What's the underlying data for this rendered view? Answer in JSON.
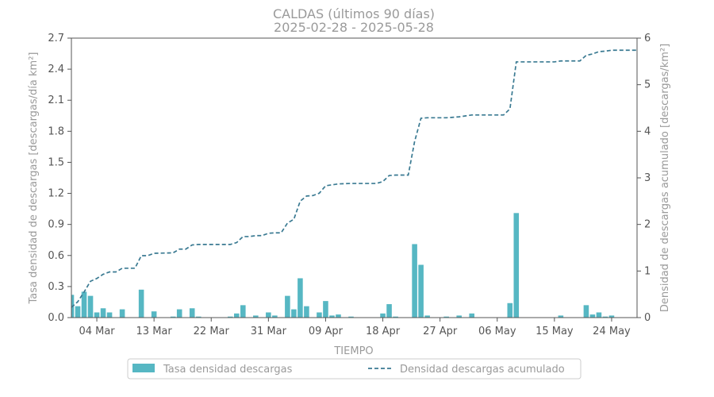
{
  "chart_data": {
    "type": "bar+line",
    "title": "CALDAS (últimos 90 días)",
    "subtitle": "2025-02-28  -  2025-05-28",
    "xlabel": "TIEMPO",
    "ylabel_left": "Tasa densidad de descargas [descargas/día km²]",
    "ylabel_right": "Densidad de descargas acumulado [descargas/km²]",
    "x_start": "2025-02-28",
    "x_end": "2025-05-28",
    "ylim_left": [
      0,
      2.7
    ],
    "ylim_right": [
      0,
      6
    ],
    "yticks_left": [
      "0.0",
      "0.3",
      "0.6",
      "0.9",
      "1.2",
      "1.5",
      "1.8",
      "2.1",
      "2.4",
      "2.7"
    ],
    "yticks_right": [
      "0",
      "1",
      "2",
      "3",
      "4",
      "5",
      "6"
    ],
    "xticks": [
      {
        "date": "2025-03-04",
        "label": "04 Mar"
      },
      {
        "date": "2025-03-13",
        "label": "13 Mar"
      },
      {
        "date": "2025-03-22",
        "label": "22 Mar"
      },
      {
        "date": "2025-03-31",
        "label": "31 Mar"
      },
      {
        "date": "2025-04-09",
        "label": "09 Apr"
      },
      {
        "date": "2025-04-18",
        "label": "18 Apr"
      },
      {
        "date": "2025-04-27",
        "label": "27 Apr"
      },
      {
        "date": "2025-05-06",
        "label": "06 May"
      },
      {
        "date": "2025-05-15",
        "label": "15 May"
      },
      {
        "date": "2025-05-24",
        "label": "24 May"
      }
    ],
    "bar_color": "#56b7c3",
    "line_color": "#3a7a92",
    "legend_position": "bottom",
    "series": [
      {
        "name": "Tasa densidad descargas",
        "kind": "bar",
        "axis": "left",
        "points": [
          {
            "x": "2025-02-28",
            "y": 0.22
          },
          {
            "x": "2025-03-01",
            "y": 0.11
          },
          {
            "x": "2025-03-02",
            "y": 0.25
          },
          {
            "x": "2025-03-03",
            "y": 0.21
          },
          {
            "x": "2025-03-04",
            "y": 0.05
          },
          {
            "x": "2025-03-05",
            "y": 0.09
          },
          {
            "x": "2025-03-06",
            "y": 0.05
          },
          {
            "x": "2025-03-08",
            "y": 0.08
          },
          {
            "x": "2025-03-11",
            "y": 0.27
          },
          {
            "x": "2025-03-13",
            "y": 0.06
          },
          {
            "x": "2025-03-16",
            "y": 0.01
          },
          {
            "x": "2025-03-17",
            "y": 0.08
          },
          {
            "x": "2025-03-19",
            "y": 0.09
          },
          {
            "x": "2025-03-20",
            "y": 0.01
          },
          {
            "x": "2025-03-25",
            "y": 0.01
          },
          {
            "x": "2025-03-26",
            "y": 0.04
          },
          {
            "x": "2025-03-27",
            "y": 0.12
          },
          {
            "x": "2025-03-29",
            "y": 0.02
          },
          {
            "x": "2025-03-31",
            "y": 0.05
          },
          {
            "x": "2025-04-01",
            "y": 0.02
          },
          {
            "x": "2025-04-03",
            "y": 0.21
          },
          {
            "x": "2025-04-04",
            "y": 0.08
          },
          {
            "x": "2025-04-05",
            "y": 0.38
          },
          {
            "x": "2025-04-06",
            "y": 0.11
          },
          {
            "x": "2025-04-08",
            "y": 0.05
          },
          {
            "x": "2025-04-09",
            "y": 0.16
          },
          {
            "x": "2025-04-10",
            "y": 0.02
          },
          {
            "x": "2025-04-11",
            "y": 0.03
          },
          {
            "x": "2025-04-13",
            "y": 0.01
          },
          {
            "x": "2025-04-18",
            "y": 0.04
          },
          {
            "x": "2025-04-19",
            "y": 0.13
          },
          {
            "x": "2025-04-20",
            "y": 0.01
          },
          {
            "x": "2025-04-23",
            "y": 0.71
          },
          {
            "x": "2025-04-24",
            "y": 0.51
          },
          {
            "x": "2025-04-25",
            "y": 0.02
          },
          {
            "x": "2025-04-28",
            "y": 0.01
          },
          {
            "x": "2025-04-30",
            "y": 0.02
          },
          {
            "x": "2025-05-02",
            "y": 0.04
          },
          {
            "x": "2025-05-08",
            "y": 0.14
          },
          {
            "x": "2025-05-09",
            "y": 1.01
          },
          {
            "x": "2025-05-16",
            "y": 0.02
          },
          {
            "x": "2025-05-20",
            "y": 0.12
          },
          {
            "x": "2025-05-21",
            "y": 0.03
          },
          {
            "x": "2025-05-22",
            "y": 0.05
          },
          {
            "x": "2025-05-23",
            "y": 0.01
          },
          {
            "x": "2025-05-24",
            "y": 0.02
          }
        ]
      },
      {
        "name": "Densidad descargas acumulado",
        "kind": "line",
        "axis": "right",
        "points": [
          {
            "x": "2025-02-28",
            "y": 0.22
          },
          {
            "x": "2025-03-01",
            "y": 0.34
          },
          {
            "x": "2025-03-02",
            "y": 0.55
          },
          {
            "x": "2025-03-03",
            "y": 0.78
          },
          {
            "x": "2025-03-04",
            "y": 0.84
          },
          {
            "x": "2025-03-05",
            "y": 0.93
          },
          {
            "x": "2025-03-06",
            "y": 0.98
          },
          {
            "x": "2025-03-07",
            "y": 0.98
          },
          {
            "x": "2025-03-08",
            "y": 1.06
          },
          {
            "x": "2025-03-10",
            "y": 1.06
          },
          {
            "x": "2025-03-11",
            "y": 1.33
          },
          {
            "x": "2025-03-12",
            "y": 1.33
          },
          {
            "x": "2025-03-13",
            "y": 1.38
          },
          {
            "x": "2025-03-16",
            "y": 1.39
          },
          {
            "x": "2025-03-17",
            "y": 1.47
          },
          {
            "x": "2025-03-18",
            "y": 1.47
          },
          {
            "x": "2025-03-19",
            "y": 1.56
          },
          {
            "x": "2025-03-20",
            "y": 1.57
          },
          {
            "x": "2025-03-25",
            "y": 1.57
          },
          {
            "x": "2025-03-26",
            "y": 1.61
          },
          {
            "x": "2025-03-27",
            "y": 1.74
          },
          {
            "x": "2025-03-28",
            "y": 1.74
          },
          {
            "x": "2025-03-29",
            "y": 1.76
          },
          {
            "x": "2025-03-30",
            "y": 1.76
          },
          {
            "x": "2025-03-31",
            "y": 1.81
          },
          {
            "x": "2025-04-01",
            "y": 1.82
          },
          {
            "x": "2025-04-02",
            "y": 1.82
          },
          {
            "x": "2025-04-03",
            "y": 2.03
          },
          {
            "x": "2025-04-04",
            "y": 2.11
          },
          {
            "x": "2025-04-05",
            "y": 2.5
          },
          {
            "x": "2025-04-06",
            "y": 2.61
          },
          {
            "x": "2025-04-07",
            "y": 2.62
          },
          {
            "x": "2025-04-08",
            "y": 2.67
          },
          {
            "x": "2025-04-09",
            "y": 2.83
          },
          {
            "x": "2025-04-10",
            "y": 2.85
          },
          {
            "x": "2025-04-11",
            "y": 2.87
          },
          {
            "x": "2025-04-13",
            "y": 2.88
          },
          {
            "x": "2025-04-17",
            "y": 2.88
          },
          {
            "x": "2025-04-18",
            "y": 2.92
          },
          {
            "x": "2025-04-19",
            "y": 3.05
          },
          {
            "x": "2025-04-20",
            "y": 3.06
          },
          {
            "x": "2025-04-22",
            "y": 3.06
          },
          {
            "x": "2025-04-23",
            "y": 3.78
          },
          {
            "x": "2025-04-24",
            "y": 4.28
          },
          {
            "x": "2025-04-25",
            "y": 4.29
          },
          {
            "x": "2025-04-28",
            "y": 4.29
          },
          {
            "x": "2025-04-30",
            "y": 4.31
          },
          {
            "x": "2025-05-02",
            "y": 4.35
          },
          {
            "x": "2025-05-07",
            "y": 4.35
          },
          {
            "x": "2025-05-08",
            "y": 4.48
          },
          {
            "x": "2025-05-09",
            "y": 5.49
          },
          {
            "x": "2025-05-15",
            "y": 5.49
          },
          {
            "x": "2025-05-16",
            "y": 5.51
          },
          {
            "x": "2025-05-19",
            "y": 5.51
          },
          {
            "x": "2025-05-20",
            "y": 5.63
          },
          {
            "x": "2025-05-21",
            "y": 5.66
          },
          {
            "x": "2025-05-22",
            "y": 5.71
          },
          {
            "x": "2025-05-23",
            "y": 5.72
          },
          {
            "x": "2025-05-24",
            "y": 5.74
          },
          {
            "x": "2025-05-28",
            "y": 5.74
          }
        ]
      }
    ]
  }
}
